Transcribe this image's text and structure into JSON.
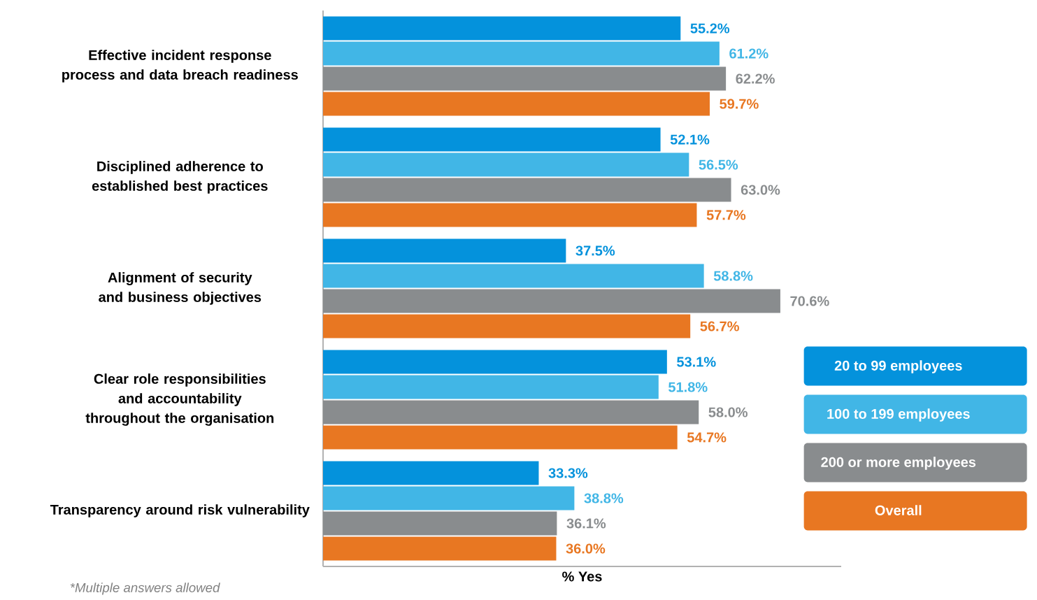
{
  "chart_data": {
    "type": "bar",
    "orientation": "horizontal",
    "xlabel": "% Yes",
    "categories": [
      "Effective incident response process and data breach readiness",
      "Disciplined adherence to established best practices",
      "Alignment of security and business objectives",
      "Clear role responsibilities and accountability throughout the organisation",
      "Transparency around risk vulnerability"
    ],
    "series": [
      {
        "name": "20 to 99 employees",
        "color": "#0492dc",
        "values": [
          55.2,
          52.1,
          37.5,
          53.1,
          33.3
        ],
        "value_labels": [
          "55.2%",
          "52.1%",
          "37.5%",
          "53.1%",
          "33.3%"
        ]
      },
      {
        "name": "100 to 199 employees",
        "color": "#41b6e6",
        "values": [
          61.2,
          56.5,
          58.8,
          51.8,
          38.8
        ],
        "value_labels": [
          "61.2%",
          "56.5%",
          "58.8%",
          "51.8%",
          "38.8%"
        ]
      },
      {
        "name": "200 or more employees",
        "color": "#898c8e",
        "values": [
          62.2,
          63.0,
          70.6,
          58.0,
          36.1
        ],
        "value_labels": [
          "62.2%",
          "63.0%",
          "70.6%",
          "58.0%",
          "36.1%"
        ]
      },
      {
        "name": "Overall",
        "color": "#e87722",
        "values": [
          59.7,
          57.7,
          56.7,
          54.7,
          36.0
        ],
        "value_labels": [
          "59.7%",
          "57.7%",
          "56.7%",
          "54.7%",
          "36.0%"
        ]
      }
    ],
    "xlim": [
      0,
      80
    ],
    "tick_labels": "y",
    "legend": "right",
    "annotations": [
      "*Multiple answers allowed"
    ]
  }
}
